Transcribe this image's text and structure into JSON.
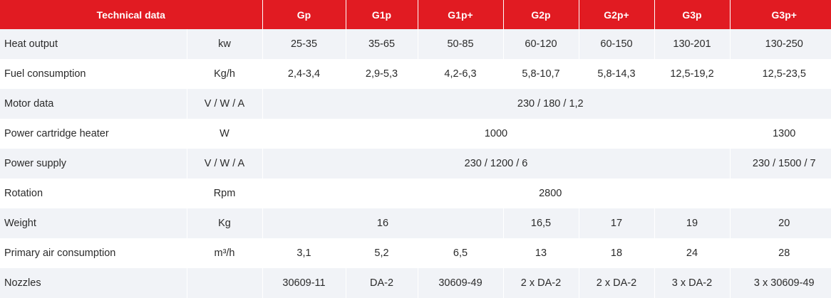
{
  "header": {
    "title": "Technical data",
    "models": [
      "Gp",
      "G1p",
      "G1p+",
      "G2p",
      "G2p+",
      "G3p",
      "G3p+"
    ]
  },
  "rows": [
    {
      "param": "Heat output",
      "unit": "kw",
      "cells": [
        {
          "value": "25-35",
          "span": 1
        },
        {
          "value": "35-65",
          "span": 1
        },
        {
          "value": "50-85",
          "span": 1
        },
        {
          "value": "60-120",
          "span": 1
        },
        {
          "value": "60-150",
          "span": 1
        },
        {
          "value": "130-201",
          "span": 1
        },
        {
          "value": "130-250",
          "span": 1
        }
      ]
    },
    {
      "param": "Fuel consumption",
      "unit": "Kg/h",
      "cells": [
        {
          "value": "2,4-3,4",
          "span": 1
        },
        {
          "value": "2,9-5,3",
          "span": 1
        },
        {
          "value": "4,2-6,3",
          "span": 1
        },
        {
          "value": "5,8-10,7",
          "span": 1
        },
        {
          "value": "5,8-14,3",
          "span": 1
        },
        {
          "value": "12,5-19,2",
          "span": 1
        },
        {
          "value": "12,5-23,5",
          "span": 1
        }
      ]
    },
    {
      "param": "Motor data",
      "unit": "V / W / A",
      "cells": [
        {
          "value": "230 / 180 / 1,2",
          "span": 7
        }
      ]
    },
    {
      "param": "Power cartridge heater",
      "unit": "W",
      "cells": [
        {
          "value": "1000",
          "span": 6
        },
        {
          "value": "1300",
          "span": 1
        }
      ]
    },
    {
      "param": "Power supply",
      "unit": "V / W / A",
      "cells": [
        {
          "value": "230 / 1200 / 6",
          "span": 6
        },
        {
          "value": "230 / 1500 / 7",
          "span": 1
        }
      ]
    },
    {
      "param": "Rotation",
      "unit": "Rpm",
      "cells": [
        {
          "value": "2800",
          "span": 7
        }
      ]
    },
    {
      "param": "Weight",
      "unit": "Kg",
      "cells": [
        {
          "value": "16",
          "span": 3
        },
        {
          "value": "16,5",
          "span": 1
        },
        {
          "value": "17",
          "span": 1
        },
        {
          "value": "19",
          "span": 1
        },
        {
          "value": "20",
          "span": 1
        }
      ]
    },
    {
      "param": "Primary air consumption",
      "unit": "m³/h",
      "cells": [
        {
          "value": "3,1",
          "span": 1
        },
        {
          "value": "5,2",
          "span": 1
        },
        {
          "value": "6,5",
          "span": 1
        },
        {
          "value": "13",
          "span": 1
        },
        {
          "value": "18",
          "span": 1
        },
        {
          "value": "24",
          "span": 1
        },
        {
          "value": "28",
          "span": 1
        }
      ]
    },
    {
      "param": "Nozzles",
      "unit": "",
      "cells": [
        {
          "value": "30609-11",
          "span": 1
        },
        {
          "value": "DA-2",
          "span": 1
        },
        {
          "value": "30609-49",
          "span": 1
        },
        {
          "value": "2 x DA-2",
          "span": 1
        },
        {
          "value": "2 x DA-2",
          "span": 1
        },
        {
          "value": "3 x DA-2",
          "span": 1
        },
        {
          "value": "3 x 30609-49",
          "span": 1
        }
      ]
    }
  ],
  "colors": {
    "header_bg": "#e11b22",
    "header_text": "#ffffff",
    "row_alt_bg": "#f1f3f7",
    "text": "#2b2b2b"
  }
}
